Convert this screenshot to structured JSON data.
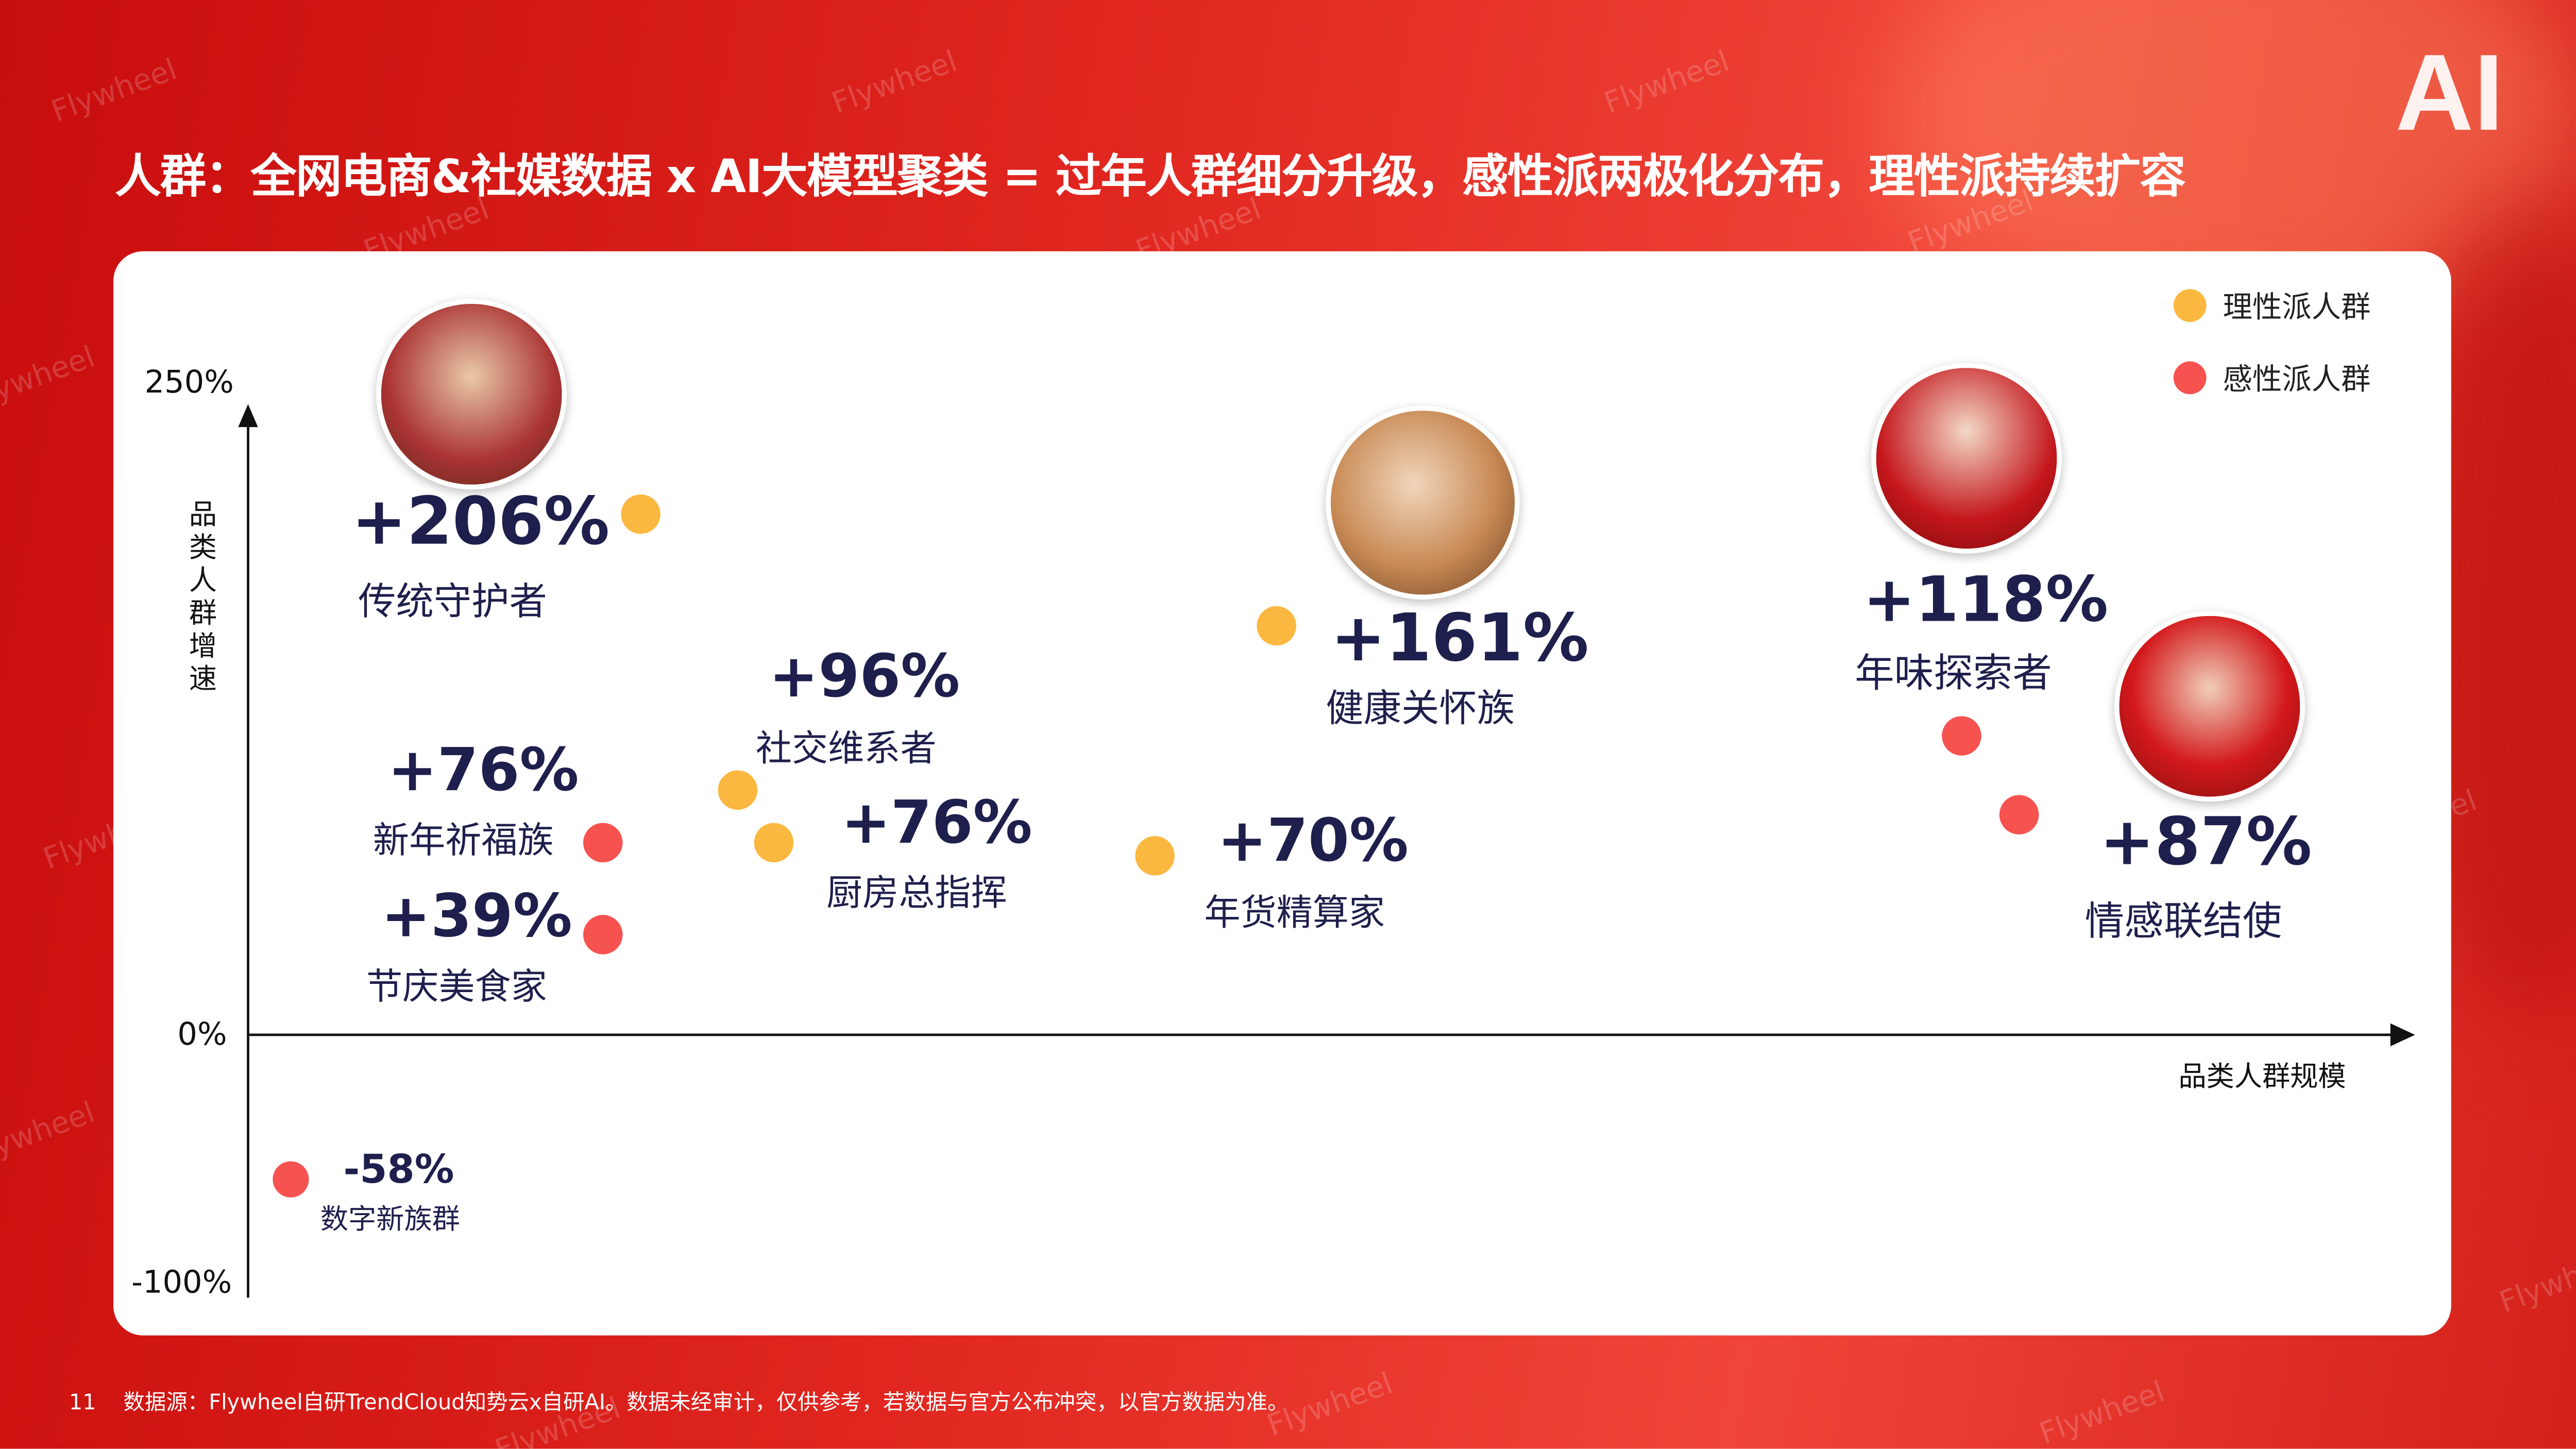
{
  "page": {
    "number": "11",
    "title": "人群：全网电商&社媒数据 x AI大模型聚类 = 过年人群细分升级，感性派两极化分布，理性派持续扩容",
    "badge": "AI",
    "watermark": "Flywheel",
    "footer": "数据源：Flywheel自研TrendCloud知势云x自研AI。数据未经审计，仅供参考，若数据与官方公布冲突，以官方数据为准。"
  },
  "colors": {
    "rational": "#fbb840",
    "emotional": "#f65350",
    "text": "#1f1f4d",
    "background": "#e0261f"
  },
  "chart_data": {
    "type": "scatter",
    "ylabel": "品类人群增速",
    "xlabel": "品类人群规模",
    "yticks": [
      "250%",
      "0%",
      "-100%"
    ],
    "ylim": [
      -100,
      250
    ],
    "xlim": [
      0,
      100
    ],
    "grid": false,
    "legend_position": "top-right",
    "series": [
      {
        "name": "理性派人群",
        "color": "#fbb840",
        "points": [
          {
            "label": "传统守护者",
            "value": "+206%",
            "x": 17,
            "y": 206
          },
          {
            "label": "健康关怀族",
            "value": "+161%",
            "x": 47,
            "y": 161
          },
          {
            "label": "社交维系者",
            "value": "+96%",
            "x": 22,
            "y": 96
          },
          {
            "label": "厨房总指挥",
            "value": "+76%",
            "x": 24,
            "y": 76
          },
          {
            "label": "年货精算家",
            "value": "+70%",
            "x": 42,
            "y": 70
          }
        ]
      },
      {
        "name": "感性派人群",
        "color": "#f65350",
        "points": [
          {
            "label": "新年祈福族",
            "value": "+76%",
            "x": 16,
            "y": 76
          },
          {
            "label": "节庆美食家",
            "value": "+39%",
            "x": 16,
            "y": 39
          },
          {
            "label": "年味探索者",
            "value": "+118%",
            "x": 79,
            "y": 118
          },
          {
            "label": "情感联结使",
            "value": "+87%",
            "x": 81,
            "y": 87
          },
          {
            "label": "数字新族群",
            "value": "-58%",
            "x": 2,
            "y": -58
          }
        ]
      }
    ]
  }
}
